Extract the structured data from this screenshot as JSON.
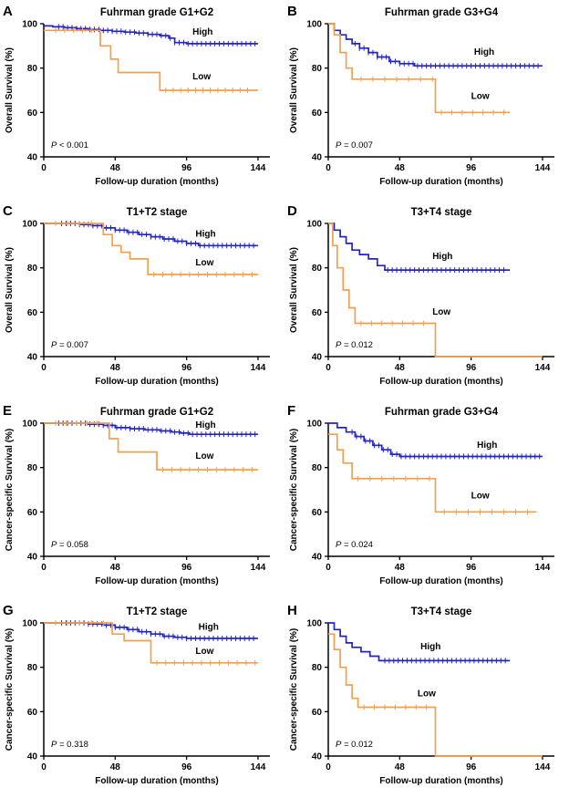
{
  "colors": {
    "high": "#2323cb",
    "low": "#f0a04f",
    "axis": "#000000",
    "background": "#ffffff"
  },
  "chart_data": [
    {
      "type": "line",
      "letter": "A",
      "title": "Fuhrman grade G1+G2",
      "xlabel": "Follow-up duration (months)",
      "ylabel": "Overall Survival (%)",
      "pvalue": "P < 0.001",
      "xticks": [
        0,
        48,
        96,
        144
      ],
      "yticks": [
        40,
        60,
        80,
        100
      ],
      "xlim": [
        0,
        152
      ],
      "ylim": [
        40,
        100
      ],
      "series": [
        {
          "name": "High",
          "color_key": "high",
          "points": [
            [
              0,
              99
            ],
            [
              6,
              98.6
            ],
            [
              14,
              98.2
            ],
            [
              22,
              97.8
            ],
            [
              30,
              97.4
            ],
            [
              38,
              97
            ],
            [
              46,
              96.6
            ],
            [
              54,
              96.2
            ],
            [
              62,
              95.8
            ],
            [
              70,
              95.2
            ],
            [
              78,
              94.6
            ],
            [
              84,
              93.5
            ],
            [
              88,
              91.5
            ],
            [
              96,
              91
            ]
          ],
          "end": 144,
          "censors": [
            {
              "from": 10,
              "to": 142,
              "step": 3
            }
          ],
          "label": {
            "x": 100,
            "y": 95
          }
        },
        {
          "name": "Low",
          "color_key": "low",
          "points": [
            [
              0,
              97
            ],
            [
              38,
              90
            ],
            [
              45,
              84
            ],
            [
              50,
              78
            ],
            [
              78,
              70
            ]
          ],
          "end": 144,
          "censors": [
            {
              "from": 8,
              "to": 32,
              "step": 6
            },
            {
              "from": 82,
              "to": 140,
              "step": 5
            }
          ],
          "label": {
            "x": 100,
            "y": 75
          }
        }
      ]
    },
    {
      "type": "line",
      "letter": "B",
      "title": "Fuhrman grade G3+G4",
      "xlabel": "Follow-up duration (months)",
      "ylabel": "Overall Survival (%)",
      "pvalue": "P = 0.007",
      "xticks": [
        0,
        48,
        96,
        144
      ],
      "yticks": [
        40,
        60,
        80,
        100
      ],
      "xlim": [
        0,
        152
      ],
      "ylim": [
        40,
        100
      ],
      "series": [
        {
          "name": "High",
          "color_key": "high",
          "points": [
            [
              0,
              100
            ],
            [
              4,
              97
            ],
            [
              8,
              95
            ],
            [
              12,
              93
            ],
            [
              16,
              91
            ],
            [
              21,
              89
            ],
            [
              27,
              87
            ],
            [
              33,
              85
            ],
            [
              41,
              83
            ],
            [
              48,
              82
            ],
            [
              58,
              81
            ]
          ],
          "end": 144,
          "censors": [
            {
              "from": 18,
              "to": 142,
              "step": 3
            }
          ],
          "label": {
            "x": 98,
            "y": 86
          }
        },
        {
          "name": "Low",
          "color_key": "low",
          "points": [
            [
              0,
              100
            ],
            [
              4,
              95
            ],
            [
              8,
              87
            ],
            [
              12,
              80
            ],
            [
              16,
              75
            ],
            [
              72,
              60
            ]
          ],
          "end": 122,
          "censors": [
            {
              "from": 22,
              "to": 70,
              "step": 8
            },
            {
              "from": 76,
              "to": 120,
              "step": 7
            }
          ],
          "label": {
            "x": 96,
            "y": 66
          }
        }
      ]
    },
    {
      "type": "line",
      "letter": "C",
      "title": "T1+T2 stage",
      "xlabel": "Follow-up duration (months)",
      "ylabel": "Overall Survival (%)",
      "pvalue": "P = 0.007",
      "xticks": [
        0,
        48,
        96,
        144
      ],
      "yticks": [
        40,
        60,
        80,
        100
      ],
      "xlim": [
        0,
        152
      ],
      "ylim": [
        40,
        100
      ],
      "series": [
        {
          "name": "High",
          "color_key": "high",
          "points": [
            [
              0,
              100
            ],
            [
              24,
              99.5
            ],
            [
              32,
              99
            ],
            [
              40,
              98
            ],
            [
              48,
              97
            ],
            [
              56,
              96
            ],
            [
              64,
              95
            ],
            [
              72,
              94
            ],
            [
              80,
              93
            ],
            [
              88,
              92
            ],
            [
              96,
              91
            ],
            [
              104,
              90
            ]
          ],
          "end": 144,
          "censors": [
            {
              "from": 12,
              "to": 142,
              "step": 3
            }
          ],
          "label": {
            "x": 102,
            "y": 94
          }
        },
        {
          "name": "Low",
          "color_key": "low",
          "points": [
            [
              0,
              100
            ],
            [
              40,
              95
            ],
            [
              46,
              90
            ],
            [
              52,
              87
            ],
            [
              58,
              84
            ],
            [
              70,
              77
            ]
          ],
          "end": 144,
          "censors": [
            {
              "from": 8,
              "to": 38,
              "step": 8
            },
            {
              "from": 74,
              "to": 142,
              "step": 6
            }
          ],
          "label": {
            "x": 102,
            "y": 81
          }
        }
      ]
    },
    {
      "type": "line",
      "letter": "D",
      "title": "T3+T4 stage",
      "xlabel": "Follow-up duration (months)",
      "ylabel": "Overall Survival (%)",
      "pvalue": "P = 0.012",
      "xticks": [
        0,
        48,
        96,
        144
      ],
      "yticks": [
        40,
        60,
        80,
        100
      ],
      "xlim": [
        0,
        152
      ],
      "ylim": [
        40,
        100
      ],
      "series": [
        {
          "name": "High",
          "color_key": "high",
          "points": [
            [
              0,
              100
            ],
            [
              4,
              97
            ],
            [
              8,
              94
            ],
            [
              12,
              91
            ],
            [
              16,
              88
            ],
            [
              21,
              86
            ],
            [
              27,
              84
            ],
            [
              33,
              81
            ],
            [
              38,
              79
            ]
          ],
          "end": 122,
          "censors": [
            {
              "from": 40,
              "to": 120,
              "step": 3
            }
          ],
          "label": {
            "x": 70,
            "y": 84
          }
        },
        {
          "name": "Low",
          "color_key": "low",
          "points": [
            [
              0,
              100
            ],
            [
              3,
              90
            ],
            [
              6,
              80
            ],
            [
              10,
              70
            ],
            [
              14,
              62
            ],
            [
              18,
              55
            ],
            [
              72,
              40
            ]
          ],
          "end": 144,
          "censors": [
            {
              "from": 22,
              "to": 70,
              "step": 7
            }
          ],
          "label": {
            "x": 70,
            "y": 59
          }
        }
      ]
    },
    {
      "type": "line",
      "letter": "E",
      "title": "Fuhrman grade G1+G2",
      "xlabel": "Follow-up duration (months)",
      "ylabel": "Cancer-specific Survival (%)",
      "pvalue": "P = 0.058",
      "xticks": [
        0,
        48,
        96,
        144
      ],
      "yticks": [
        40,
        60,
        80,
        100
      ],
      "xlim": [
        0,
        152
      ],
      "ylim": [
        40,
        100
      ],
      "series": [
        {
          "name": "High",
          "color_key": "high",
          "points": [
            [
              0,
              100
            ],
            [
              30,
              99.5
            ],
            [
              40,
              99
            ],
            [
              48,
              98
            ],
            [
              58,
              97.5
            ],
            [
              68,
              97
            ],
            [
              78,
              96.5
            ],
            [
              86,
              96
            ],
            [
              92,
              95.5
            ],
            [
              98,
              95
            ]
          ],
          "end": 144,
          "censors": [
            {
              "from": 10,
              "to": 142,
              "step": 3
            }
          ],
          "label": {
            "x": 102,
            "y": 98
          }
        },
        {
          "name": "Low",
          "color_key": "low",
          "points": [
            [
              0,
              100
            ],
            [
              44,
              93
            ],
            [
              50,
              87
            ],
            [
              76,
              79
            ]
          ],
          "end": 144,
          "censors": [
            {
              "from": 8,
              "to": 42,
              "step": 7
            },
            {
              "from": 80,
              "to": 142,
              "step": 6
            }
          ],
          "label": {
            "x": 102,
            "y": 84
          }
        }
      ]
    },
    {
      "type": "line",
      "letter": "F",
      "title": "Fuhrman grade G3+G4",
      "xlabel": "Follow-up duration (months)",
      "ylabel": "Cancer-specific Survival (%)",
      "pvalue": "P = 0.024",
      "xticks": [
        0,
        48,
        96,
        144
      ],
      "yticks": [
        40,
        60,
        80,
        100
      ],
      "xlim": [
        0,
        152
      ],
      "ylim": [
        40,
        100
      ],
      "series": [
        {
          "name": "High",
          "color_key": "high",
          "points": [
            [
              0,
              100
            ],
            [
              6,
              98
            ],
            [
              12,
              96
            ],
            [
              18,
              94
            ],
            [
              24,
              92
            ],
            [
              30,
              90
            ],
            [
              36,
              88
            ],
            [
              42,
              86
            ],
            [
              48,
              85
            ]
          ],
          "end": 144,
          "censors": [
            {
              "from": 16,
              "to": 142,
              "step": 3
            }
          ],
          "label": {
            "x": 100,
            "y": 89
          }
        },
        {
          "name": "Low",
          "color_key": "low",
          "points": [
            [
              0,
              95
            ],
            [
              6,
              88
            ],
            [
              10,
              82
            ],
            [
              16,
              75
            ],
            [
              72,
              60
            ]
          ],
          "end": 140,
          "censors": [
            {
              "from": 20,
              "to": 70,
              "step": 8
            },
            {
              "from": 78,
              "to": 138,
              "step": 8
            }
          ],
          "label": {
            "x": 96,
            "y": 66
          }
        }
      ]
    },
    {
      "type": "line",
      "letter": "G",
      "title": "T1+T2 stage",
      "xlabel": "Follow-up duration (months)",
      "ylabel": "Cancer-specific Survival (%)",
      "pvalue": "P = 0.318",
      "xticks": [
        0,
        48,
        96,
        144
      ],
      "yticks": [
        40,
        60,
        80,
        100
      ],
      "xlim": [
        0,
        152
      ],
      "ylim": [
        40,
        100
      ],
      "series": [
        {
          "name": "High",
          "color_key": "high",
          "points": [
            [
              0,
              100
            ],
            [
              30,
              99.5
            ],
            [
              40,
              99
            ],
            [
              48,
              98
            ],
            [
              56,
              97
            ],
            [
              64,
              96
            ],
            [
              72,
              95
            ],
            [
              80,
              94
            ],
            [
              88,
              93.5
            ],
            [
              96,
              93
            ]
          ],
          "end": 144,
          "censors": [
            {
              "from": 12,
              "to": 142,
              "step": 3
            }
          ],
          "label": {
            "x": 104,
            "y": 97
          }
        },
        {
          "name": "Low",
          "color_key": "low",
          "points": [
            [
              0,
              100
            ],
            [
              46,
              95
            ],
            [
              54,
              92
            ],
            [
              72,
              82
            ]
          ],
          "end": 144,
          "censors": [
            {
              "from": 8,
              "to": 44,
              "step": 8
            },
            {
              "from": 76,
              "to": 142,
              "step": 6
            }
          ],
          "label": {
            "x": 102,
            "y": 86
          }
        }
      ]
    },
    {
      "type": "line",
      "letter": "H",
      "title": "T3+T4 stage",
      "xlabel": "Follow-up duration (months)",
      "ylabel": "Cancer-specific Survival (%)",
      "pvalue": "P = 0.012",
      "xticks": [
        0,
        48,
        96,
        144
      ],
      "yticks": [
        40,
        60,
        80,
        100
      ],
      "xlim": [
        0,
        152
      ],
      "ylim": [
        40,
        100
      ],
      "series": [
        {
          "name": "High",
          "color_key": "high",
          "points": [
            [
              0,
              100
            ],
            [
              4,
              97
            ],
            [
              8,
              94
            ],
            [
              12,
              91
            ],
            [
              16,
              89
            ],
            [
              22,
              87
            ],
            [
              28,
              85
            ],
            [
              34,
              83
            ]
          ],
          "end": 122,
          "censors": [
            {
              "from": 38,
              "to": 120,
              "step": 3
            }
          ],
          "label": {
            "x": 62,
            "y": 88
          }
        },
        {
          "name": "Low",
          "color_key": "low",
          "points": [
            [
              0,
              95
            ],
            [
              4,
              88
            ],
            [
              8,
              80
            ],
            [
              12,
              72
            ],
            [
              16,
              66
            ],
            [
              20,
              62
            ],
            [
              72,
              40
            ]
          ],
          "end": 144,
          "censors": [
            {
              "from": 24,
              "to": 70,
              "step": 7
            }
          ],
          "label": {
            "x": 60,
            "y": 67
          }
        }
      ]
    }
  ]
}
